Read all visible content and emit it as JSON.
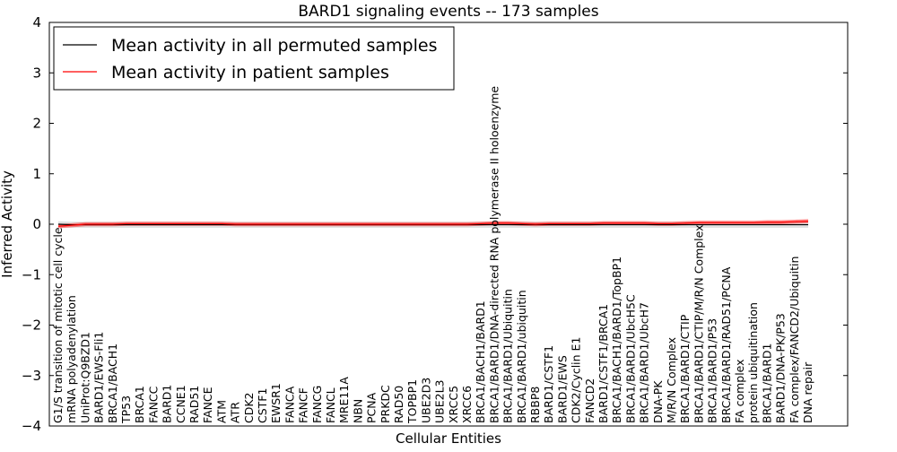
{
  "chart_data": {
    "type": "line",
    "title": "BARD1 signaling events -- 173 samples",
    "xlabel": "Cellular Entities",
    "ylabel": "Inferred Activity",
    "ylim": [
      -4,
      4
    ],
    "yticks": [
      "4",
      "3",
      "2",
      "1",
      "0",
      "−1",
      "−2",
      "−3",
      "−4"
    ],
    "legend_position": "top-left",
    "categories": [
      "G1/S transition of mitotic cell cycle",
      "mRNA polyadenylation",
      "UniProt:Q9BZD1",
      "BARD1/EWS-Fli1",
      "BRCA1/BACH1",
      "TP53",
      "BRCA1",
      "FANCC",
      "BARD1",
      "CCNE1",
      "RAD51",
      "FANCE",
      "ATM",
      "ATR",
      "CDK2",
      "CSTF1",
      "EWSR1",
      "FANCA",
      "FANCF",
      "FANCG",
      "FANCL",
      "MRE11A",
      "NBN",
      "PCNA",
      "PRKDC",
      "RAD50",
      "TOPBP1",
      "UBE2D3",
      "UBE2L3",
      "XRCC5",
      "XRCC6",
      "BRCA1/BACH1/BARD1",
      "BRCA1/BARD1/DNA-directed RNA polymerase II holoenzyme",
      "BRCA1/BARD1/Ubiquitin",
      "BRCA1/BARD1/ubiquitin",
      "RBBP8",
      "BARD1/CSTF1",
      "BARD1/EWS",
      "CDK2/Cyclin E1",
      "FANCD2",
      "BARD1/CSTF1/BRCA1",
      "BRCA1/BACH1/BARD1/TopBP1",
      "BRCA1/BARD1/UbcH5C",
      "BRCA1/BARD1/UbcH7",
      "DNA-PK",
      "M/R/N Complex",
      "BRCA1/BARD1/CTIP",
      "BRCA1/BARD1/CTIP/M/R/N Complex",
      "BRCA1/BARD1/P53",
      "BRCA1/BARD1/RAD51/PCNA",
      "FA complex",
      "protein ubiquitination",
      "BRCA1/BARD1",
      "BARD1/DNA-PK/P53",
      "FA complex/FANCD2/Ubiquitin",
      "DNA repair"
    ],
    "series": [
      {
        "name": "Mean activity in all permuted samples",
        "color": "#000000",
        "values": [
          0.0,
          -0.01,
          -0.01,
          -0.01,
          -0.01,
          -0.01,
          -0.01,
          -0.01,
          -0.01,
          -0.01,
          -0.01,
          -0.01,
          -0.01,
          -0.01,
          -0.01,
          -0.01,
          -0.01,
          -0.01,
          -0.01,
          -0.01,
          -0.01,
          -0.01,
          -0.01,
          -0.01,
          -0.01,
          -0.01,
          -0.01,
          -0.01,
          -0.01,
          -0.01,
          -0.01,
          -0.01,
          -0.01,
          -0.01,
          -0.01,
          -0.01,
          -0.01,
          -0.01,
          -0.01,
          -0.01,
          -0.01,
          -0.01,
          -0.01,
          -0.01,
          -0.01,
          -0.01,
          -0.01,
          -0.01,
          -0.01,
          -0.01,
          -0.01,
          -0.01,
          -0.01,
          -0.01,
          -0.01,
          -0.01
        ],
        "band": 0.06
      },
      {
        "name": "Mean activity in patient samples",
        "color": "#ff0000",
        "values": [
          -0.04,
          -0.02,
          0.0,
          0.0,
          0.0,
          0.01,
          0.01,
          0.01,
          0.01,
          0.01,
          0.01,
          0.01,
          0.01,
          0.0,
          0.0,
          0.0,
          0.0,
          0.0,
          0.0,
          0.0,
          0.0,
          0.0,
          0.0,
          0.0,
          0.0,
          0.0,
          0.0,
          0.0,
          0.0,
          0.0,
          0.0,
          0.01,
          0.02,
          0.02,
          0.01,
          0.0,
          0.01,
          0.01,
          0.01,
          0.01,
          0.02,
          0.02,
          0.02,
          0.02,
          0.01,
          0.01,
          0.02,
          0.03,
          0.03,
          0.03,
          0.03,
          0.03,
          0.04,
          0.04,
          0.05,
          0.06
        ],
        "band": 0.04
      }
    ],
    "band_color": "#aaaaaa"
  }
}
